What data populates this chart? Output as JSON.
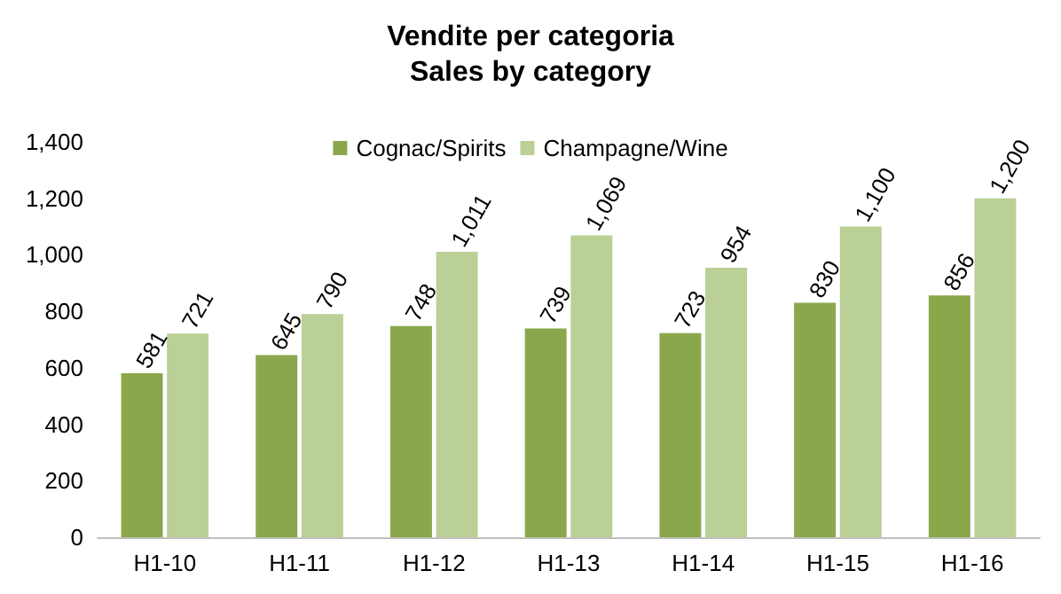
{
  "chart_data": {
    "type": "bar",
    "title": "Vendite per categoria",
    "subtitle": "Sales by category",
    "categories": [
      "H1-10",
      "H1-11",
      "H1-12",
      "H1-13",
      "H1-14",
      "H1-15",
      "H1-16"
    ],
    "series": [
      {
        "name": "Cognac/Spirits",
        "color": "#8aa84b",
        "values": [
          581,
          645,
          748,
          739,
          723,
          830,
          856
        ],
        "value_labels": [
          "581",
          "645",
          "748",
          "739",
          "723",
          "830",
          "856"
        ]
      },
      {
        "name": "Champagne/Wine",
        "color": "#bad096",
        "values": [
          721,
          790,
          1011,
          1069,
          954,
          1100,
          1200
        ],
        "value_labels": [
          "721",
          "790",
          "1,011",
          "1,069",
          "954",
          "1,100",
          "1,200"
        ]
      }
    ],
    "ylim": [
      0,
      1400
    ],
    "yticks": [
      0,
      200,
      400,
      600,
      800,
      {
        "value": 1000,
        "label": "1,000"
      },
      {
        "value": 1200,
        "label": "1,200"
      },
      {
        "value": 1400,
        "label": "1,400"
      }
    ],
    "grid": false,
    "legend": "top"
  }
}
